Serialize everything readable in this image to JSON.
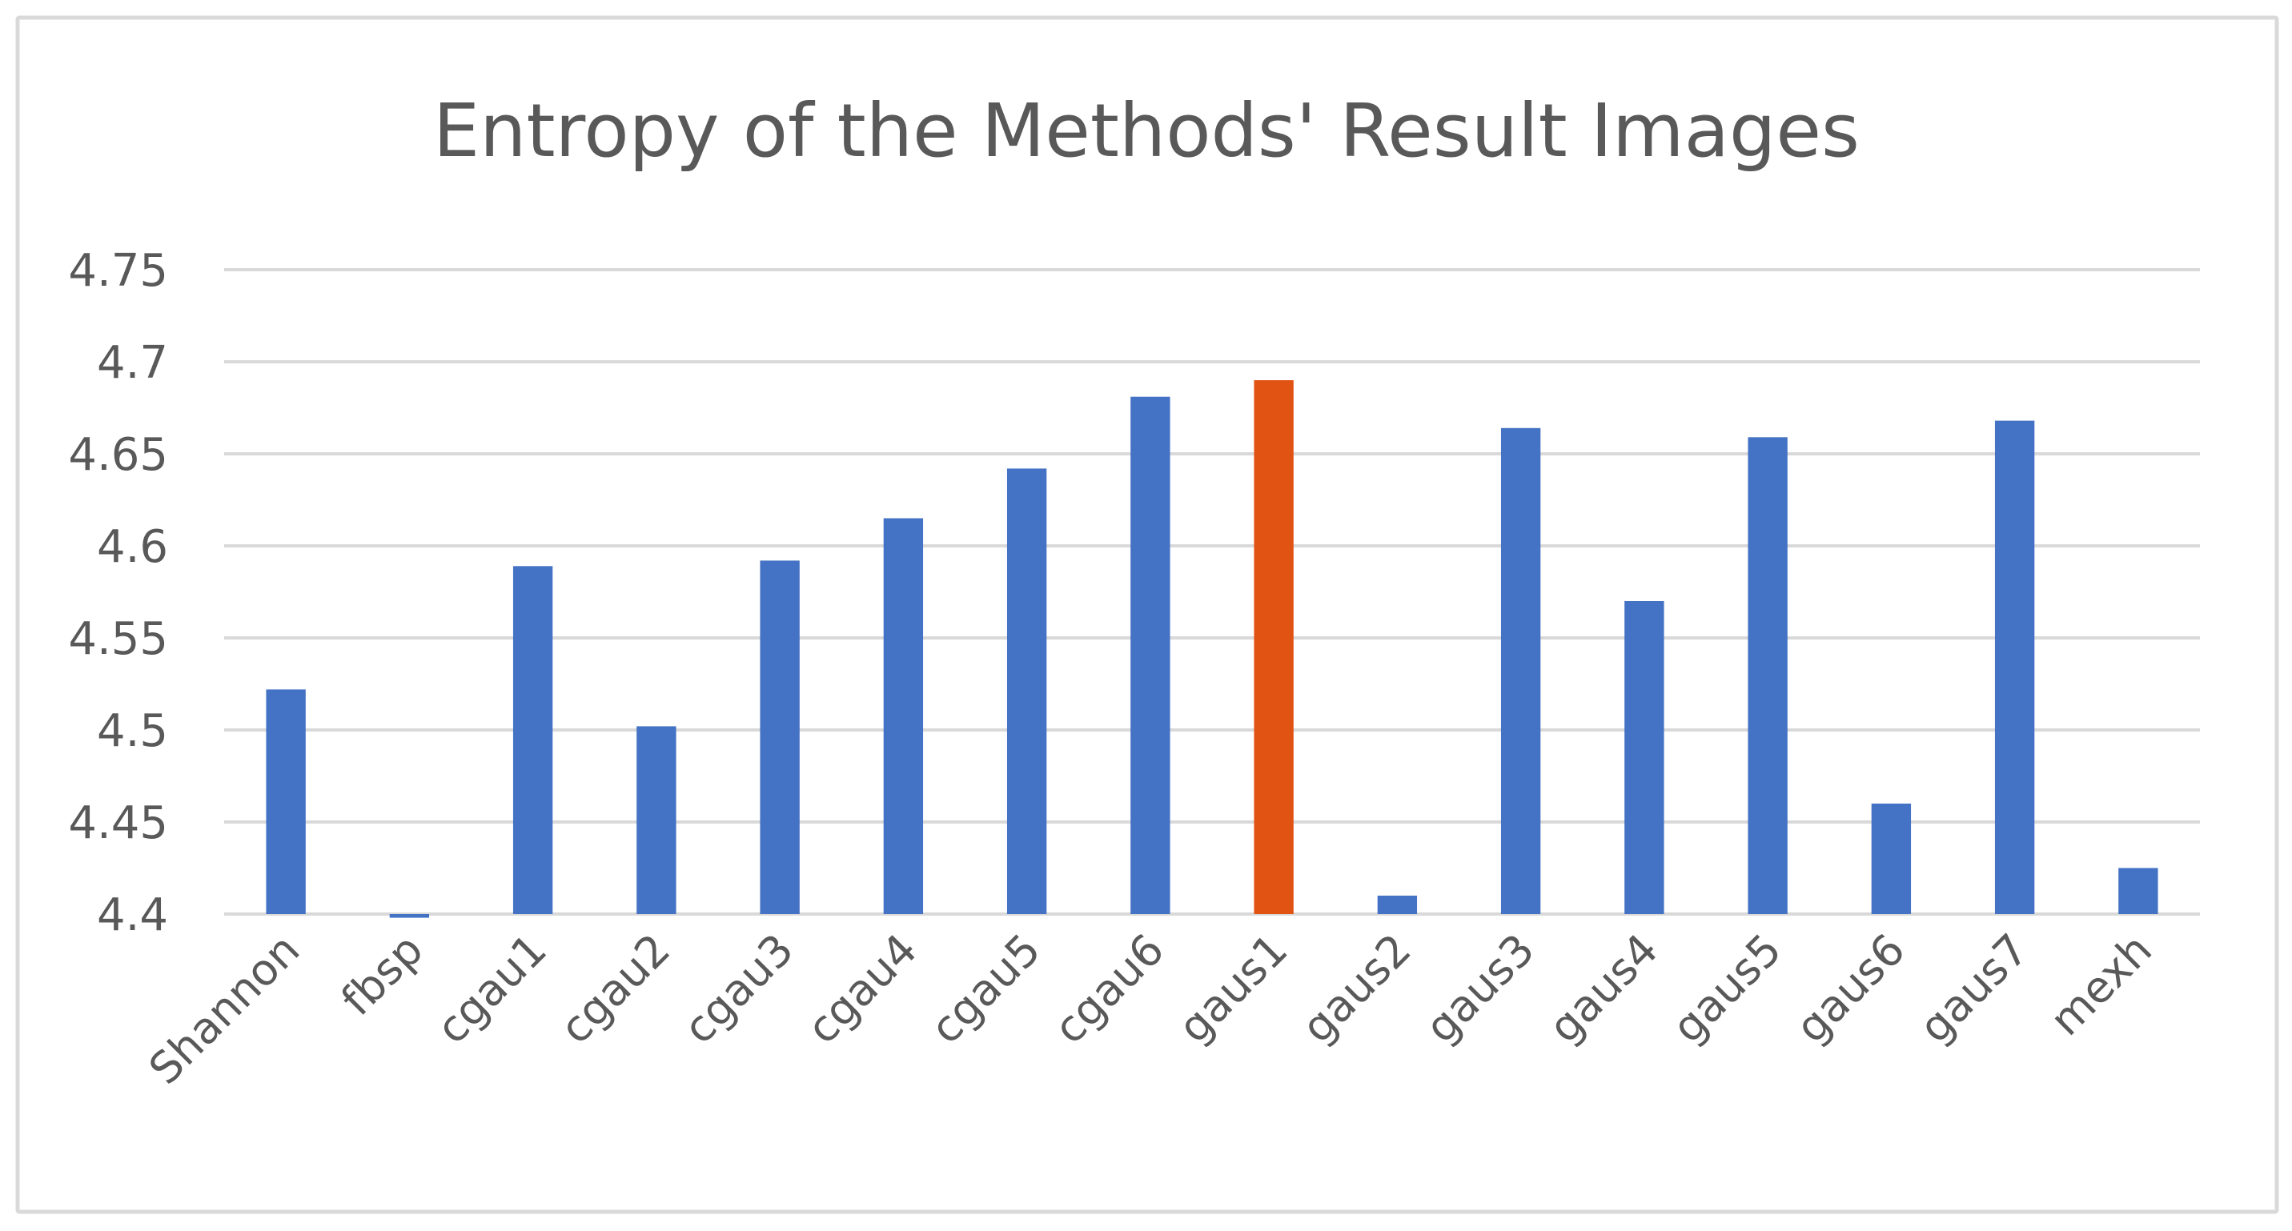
{
  "chart_data": {
    "type": "bar",
    "title": "Entropy of the Methods' Result Images",
    "xlabel": "",
    "ylabel": "",
    "categories": [
      "Shannon",
      "fbsp",
      "cgau1",
      "cgau2",
      "cgau3",
      "cgau4",
      "cgau5",
      "cgau6",
      "gaus1",
      "gaus2",
      "gaus3",
      "gaus4",
      "gaus5",
      "gaus6",
      "gaus7",
      "mexh"
    ],
    "values": [
      4.522,
      4.398,
      4.589,
      4.502,
      4.592,
      4.615,
      4.642,
      4.681,
      4.69,
      4.41,
      4.664,
      4.57,
      4.659,
      4.46,
      4.668,
      4.425
    ],
    "ylim": [
      4.4,
      4.75
    ],
    "yticks": [
      "4.4",
      "4.45",
      "4.5",
      "4.55",
      "4.6",
      "4.65",
      "4.7",
      "4.75"
    ],
    "grid": true,
    "legend": "none",
    "colors": {
      "default_bar": "#4472C4",
      "highlight_bar": "#E15312",
      "grid": "#D9D9D9",
      "text": "#595959",
      "border": "#D9D9D9"
    },
    "highlight_category": "gaus1"
  }
}
